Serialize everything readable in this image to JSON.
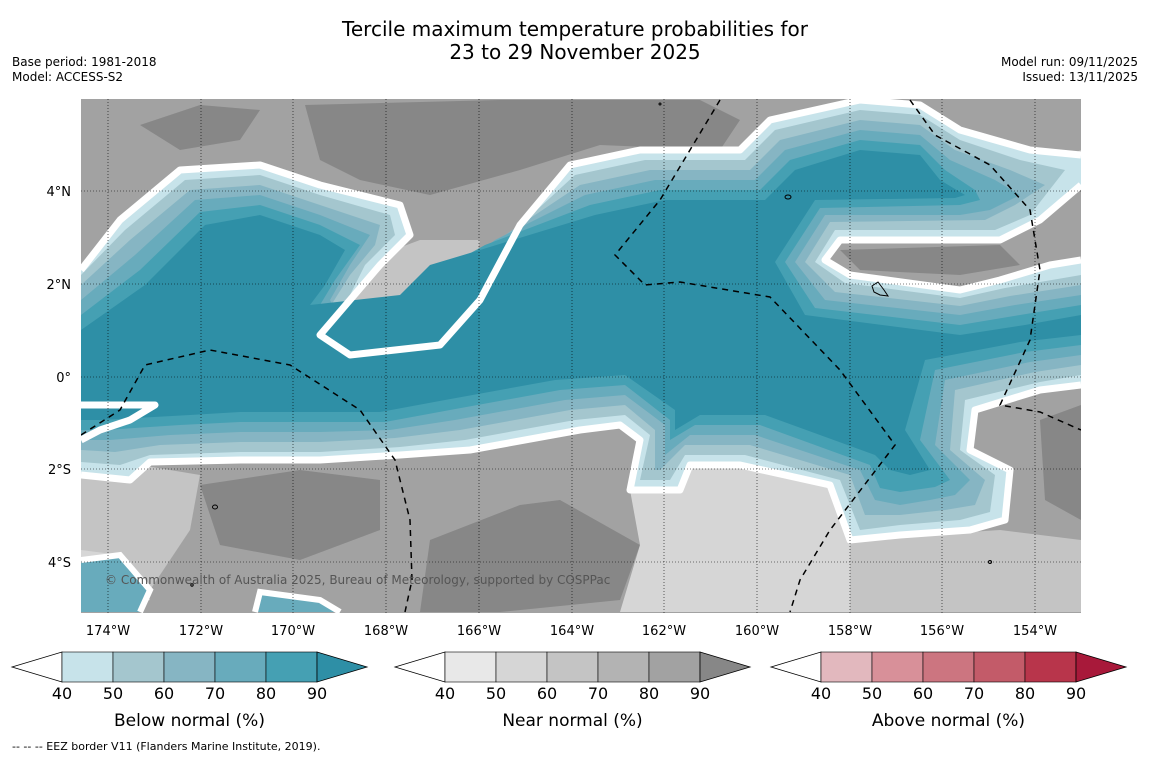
{
  "title": {
    "line1": "Tercile maximum temperature probabilities for",
    "line2": "23 to 29 November 2025"
  },
  "meta_left": {
    "base_period": "Base period: 1981-2018",
    "model": "Model: ACCESS-S2"
  },
  "meta_right": {
    "model_run": "Model run: 09/11/2025",
    "issued": "Issued: 13/11/2025"
  },
  "map": {
    "lon_labels": [
      "174°W",
      "172°W",
      "170°W",
      "168°W",
      "166°W",
      "164°W",
      "162°W",
      "160°W",
      "158°W",
      "156°W",
      "154°W"
    ],
    "lat_labels": [
      "4°N",
      "2°N",
      "0°",
      "2°S",
      "4°S"
    ],
    "copyright": "© Commonwealth of Australia 2025, Bureau of Meteorology, supported by COSPPac"
  },
  "colorbars": [
    {
      "title": "Below normal (%)",
      "ticks": [
        "40",
        "50",
        "60",
        "70",
        "80",
        "90"
      ],
      "colors": [
        "#c7e3ea",
        "#a4c6ce",
        "#86b5c3",
        "#68abbc",
        "#45a0b3",
        "#2e8fa6"
      ]
    },
    {
      "title": "Near normal (%)",
      "ticks": [
        "40",
        "50",
        "60",
        "70",
        "80",
        "90"
      ],
      "colors": [
        "#e8e8e8",
        "#d6d6d6",
        "#c4c4c4",
        "#b3b3b3",
        "#a2a2a2",
        "#878787"
      ]
    },
    {
      "title": "Above normal (%)",
      "ticks": [
        "40",
        "50",
        "60",
        "70",
        "80",
        "90"
      ],
      "colors": [
        "#e2b8be",
        "#d89099",
        "#cc7580",
        "#c35b69",
        "#b8354b",
        "#a8193a"
      ]
    }
  ],
  "footer": "--  --  -- EEZ border V11 (Flanders Marine Institute, 2019)."
}
